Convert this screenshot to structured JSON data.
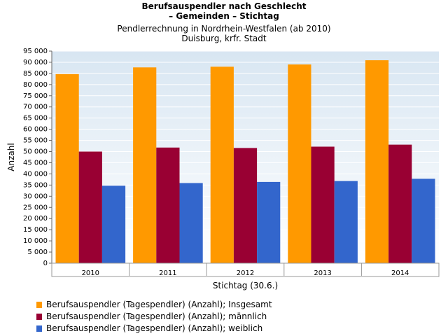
{
  "chart_data": {
    "type": "bar",
    "title_line1": "Berufsauspendler nach Geschlecht",
    "title_line2": "– Gemeinden – Stichtag",
    "subtitle_line1": "Pendlerrechnung in Nordrhein-Westfalen (ab 2010)",
    "subtitle_line2": "Duisburg, krfr. Stadt",
    "xlabel": "Stichtag (30.6.)",
    "ylabel": "Anzahl",
    "ylim": [
      0,
      95000
    ],
    "yticks": [
      "0",
      "5 000",
      "10 000",
      "15 000",
      "20 000",
      "25 000",
      "30 000",
      "35 000",
      "40 000",
      "45 000",
      "50 000",
      "55 000",
      "60 000",
      "65 000",
      "70 000",
      "75 000",
      "80 000",
      "85 000",
      "90 000",
      "95 000"
    ],
    "categories": [
      "2010",
      "2011",
      "2012",
      "2013",
      "2014"
    ],
    "series": [
      {
        "name": "Berufsauspendler (Tagespendler) (Anzahl); Insgesamt",
        "color": "#ff9900",
        "values": [
          84700,
          87700,
          88000,
          89000,
          90900
        ]
      },
      {
        "name": "Berufsauspendler (Tagespendler) (Anzahl); männlich",
        "color": "#990033",
        "values": [
          50000,
          51800,
          51600,
          52200,
          53100
        ]
      },
      {
        "name": "Berufsauspendler (Tagespendler) (Anzahl); weiblich",
        "color": "#3366cc",
        "values": [
          34700,
          35900,
          36400,
          36800,
          37800
        ]
      }
    ]
  }
}
